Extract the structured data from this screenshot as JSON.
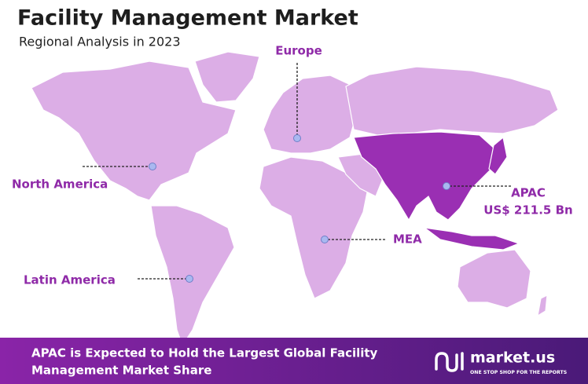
{
  "header": {
    "title": "Facility Management Market",
    "subtitle": "Regional Analysis in 2023"
  },
  "regions": [
    {
      "label": "Europe"
    },
    {
      "label": "North America"
    },
    {
      "label": "APAC",
      "value_label": "US$ 211.5 Bn"
    },
    {
      "label": "MEA"
    },
    {
      "label": "Latin America"
    }
  ],
  "footer": {
    "lines": [
      "APAC is Expected to Hold the Largest Global Facility",
      "Management Market Share"
    ],
    "logo": "market.us",
    "tagline": "ONE STOP SHOP FOR THE REPORTS"
  }
}
